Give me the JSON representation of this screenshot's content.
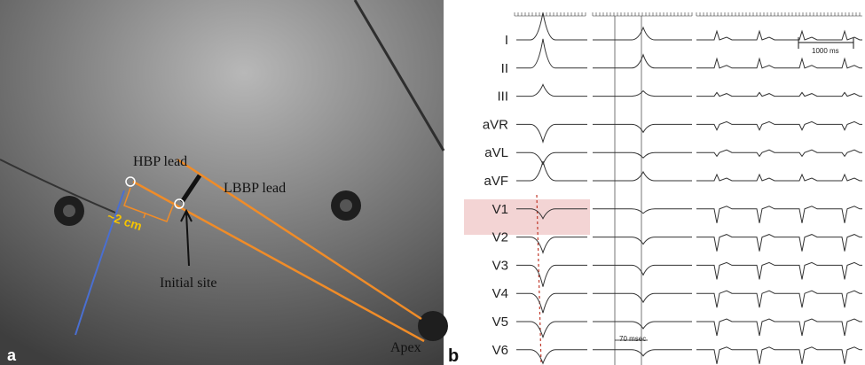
{
  "panel_a": {
    "label": "a",
    "annotations": {
      "hbp_lead": "HBP lead",
      "lbbp_lead": "LBBP lead",
      "distance": "~2 cm",
      "initial_site": "Initial site",
      "apex": "Apex"
    }
  },
  "panel_b": {
    "label": "b",
    "leads": [
      "I",
      "II",
      "III",
      "aVR",
      "aVL",
      "aVF",
      "V1",
      "V2",
      "V3",
      "V4",
      "V5",
      "V6"
    ],
    "scale_bar": "1000 ms",
    "interval": "70 msec"
  }
}
